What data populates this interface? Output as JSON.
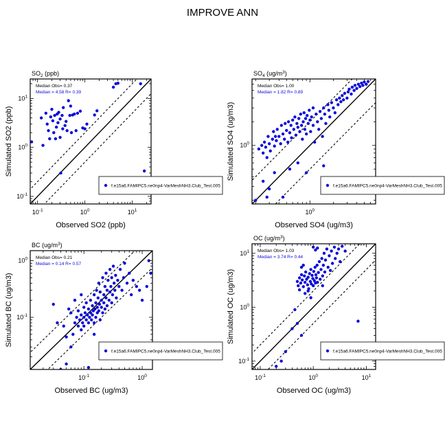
{
  "page_title": "IMPROVE ANN",
  "chart_data": [
    {
      "type": "scatter",
      "panel_label": "SO",
      "panel_label_sub": "2",
      "panel_label_unit": " (ppb)",
      "xlabel": "Observed SO2 (ppb)",
      "ylabel": "Simulated SO2 (ppb)",
      "xscale": "log",
      "yscale": "log",
      "xlim": [
        0.07,
        25
      ],
      "ylim": [
        0.07,
        25
      ],
      "xticks": [
        {
          "v": 0.1,
          "b": "10",
          "e": "-1"
        },
        {
          "v": 1,
          "b": "10",
          "e": "0"
        },
        {
          "v": 10,
          "b": "10",
          "e": "1"
        }
      ],
      "yticks": [
        {
          "v": 0.1,
          "b": "10",
          "e": "-1"
        },
        {
          "v": 1,
          "b": "10",
          "e": "0"
        },
        {
          "v": 10,
          "b": "10",
          "e": "1"
        }
      ],
      "median_obs": "Median Obs= 0.37",
      "median_sim": "Median = 4.58 R= 0.39",
      "legend": "f.e15a6.FAMIPC5.ne0np4-VarMeshNH3.Club_Test.005",
      "points": [
        [
          0.075,
          1.3
        ],
        [
          0.12,
          4.0
        ],
        [
          0.13,
          1.1
        ],
        [
          0.15,
          5.0
        ],
        [
          0.16,
          3.0
        ],
        [
          0.17,
          2.2
        ],
        [
          0.18,
          1.5
        ],
        [
          0.19,
          4.2
        ],
        [
          0.2,
          6.0
        ],
        [
          0.21,
          3.5
        ],
        [
          0.22,
          2.0
        ],
        [
          0.23,
          4.5
        ],
        [
          0.24,
          1.5
        ],
        [
          0.25,
          2.6
        ],
        [
          0.26,
          4.8
        ],
        [
          0.27,
          3.2
        ],
        [
          0.28,
          5.2
        ],
        [
          0.3,
          1.6
        ],
        [
          0.3,
          3.8
        ],
        [
          0.31,
          0.3
        ],
        [
          0.33,
          4.5
        ],
        [
          0.34,
          2.4
        ],
        [
          0.35,
          6.5
        ],
        [
          0.38,
          2.8
        ],
        [
          0.4,
          3.4
        ],
        [
          0.42,
          2.2
        ],
        [
          0.45,
          9.0
        ],
        [
          0.48,
          4.5
        ],
        [
          0.5,
          7.0
        ],
        [
          0.52,
          2.0
        ],
        [
          0.55,
          4.6
        ],
        [
          0.6,
          4.8
        ],
        [
          0.65,
          2.2
        ],
        [
          0.7,
          5.0
        ],
        [
          0.8,
          5.5
        ],
        [
          0.9,
          2.5
        ],
        [
          1.0,
          2.4
        ],
        [
          1.1,
          3.0
        ],
        [
          1.6,
          4.6
        ],
        [
          1.8,
          5.6
        ],
        [
          4.0,
          17.0
        ],
        [
          4.5,
          20.0
        ],
        [
          5.0,
          20.5
        ],
        [
          15.0,
          20.0
        ],
        [
          18.0,
          0.33
        ]
      ]
    },
    {
      "type": "scatter",
      "panel_label": "SO",
      "panel_label_sub": "4",
      "panel_label_unit": " (ug/m",
      "panel_label_sup": "3",
      "panel_label_end": ")",
      "xlabel": "Observed SO4 (ug/m3)",
      "ylabel": "Simulated SO4 (ug/m3)",
      "xscale": "log",
      "yscale": "log",
      "xlim": [
        0.18,
        7
      ],
      "ylim": [
        0.18,
        7
      ],
      "xticks": [
        {
          "v": 1,
          "b": "10",
          "e": "0"
        }
      ],
      "yticks": [
        {
          "v": 1,
          "b": "10",
          "e": "0"
        }
      ],
      "median_obs": "Median Obs= 1.00",
      "median_sim": "Median = 1.82 R= 0.89",
      "legend": "f.e15a6.FAMIPC5.ne0np4-VarMeshNH3.Club_Test.005",
      "points": [
        [
          0.22,
          0.9
        ],
        [
          0.24,
          1.0
        ],
        [
          0.25,
          0.8
        ],
        [
          0.26,
          1.1
        ],
        [
          0.27,
          0.95
        ],
        [
          0.28,
          0.7
        ],
        [
          0.29,
          1.3
        ],
        [
          0.3,
          1.05
        ],
        [
          0.31,
          0.85
        ],
        [
          0.33,
          1.2
        ],
        [
          0.34,
          1.5
        ],
        [
          0.35,
          0.98
        ],
        [
          0.36,
          1.3
        ],
        [
          0.37,
          1.15
        ],
        [
          0.38,
          1.6
        ],
        [
          0.4,
          1.3
        ],
        [
          0.42,
          1.05
        ],
        [
          0.43,
          1.8
        ],
        [
          0.45,
          1.4
        ],
        [
          0.47,
          1.2
        ],
        [
          0.48,
          1.9
        ],
        [
          0.5,
          1.55
        ],
        [
          0.52,
          1.1
        ],
        [
          0.53,
          2.0
        ],
        [
          0.55,
          1.45
        ],
        [
          0.57,
          1.8
        ],
        [
          0.58,
          1.25
        ],
        [
          0.6,
          2.1
        ],
        [
          0.62,
          1.6
        ],
        [
          0.64,
          2.3
        ],
        [
          0.66,
          1.35
        ],
        [
          0.68,
          1.9
        ],
        [
          0.7,
          1.7
        ],
        [
          0.72,
          2.2
        ],
        [
          0.74,
          1.5
        ],
        [
          0.76,
          2.5
        ],
        [
          0.78,
          1.8
        ],
        [
          0.8,
          1.2
        ],
        [
          0.82,
          2.0
        ],
        [
          0.84,
          2.6
        ],
        [
          0.86,
          1.6
        ],
        [
          0.88,
          2.2
        ],
        [
          0.9,
          1.4
        ],
        [
          0.92,
          2.4
        ],
        [
          0.95,
          1.9
        ],
        [
          0.98,
          2.8
        ],
        [
          1.0,
          2.1
        ],
        [
          1.02,
          1.5
        ],
        [
          1.05,
          2.3
        ],
        [
          1.1,
          1.8
        ],
        [
          1.1,
          3.0
        ],
        [
          1.15,
          1.1
        ],
        [
          1.2,
          2.5
        ],
        [
          1.25,
          2.0
        ],
        [
          1.3,
          1.6
        ],
        [
          1.35,
          2.7
        ],
        [
          1.4,
          2.2
        ],
        [
          1.45,
          1.3
        ],
        [
          1.5,
          3.0
        ],
        [
          1.55,
          2.5
        ],
        [
          1.6,
          1.9
        ],
        [
          1.7,
          3.3
        ],
        [
          1.75,
          2.8
        ],
        [
          1.8,
          2.3
        ],
        [
          1.9,
          3.5
        ],
        [
          2.0,
          3.0
        ],
        [
          2.1,
          2.6
        ],
        [
          2.2,
          3.8
        ],
        [
          2.3,
          3.3
        ],
        [
          2.4,
          4.0
        ],
        [
          2.5,
          3.6
        ],
        [
          2.6,
          4.3
        ],
        [
          2.7,
          3.8
        ],
        [
          2.8,
          4.6
        ],
        [
          3.0,
          4.0
        ],
        [
          3.1,
          4.8
        ],
        [
          3.2,
          5.2
        ],
        [
          3.4,
          4.5
        ],
        [
          3.5,
          5.5
        ],
        [
          3.7,
          5.0
        ],
        [
          3.8,
          5.8
        ],
        [
          4.0,
          5.3
        ],
        [
          4.2,
          6.0
        ],
        [
          4.4,
          5.6
        ],
        [
          4.6,
          6.2
        ],
        [
          4.8,
          5.8
        ],
        [
          5.0,
          6.4
        ],
        [
          5.3,
          6.0
        ],
        [
          5.6,
          6.5
        ],
        [
          0.35,
          0.45
        ],
        [
          0.45,
          0.22
        ],
        [
          0.55,
          0.5
        ],
        [
          0.7,
          0.6
        ],
        [
          0.9,
          0.45
        ],
        [
          1.5,
          0.55
        ],
        [
          0.25,
          0.35
        ],
        [
          0.28,
          0.22
        ],
        [
          0.3,
          0.28
        ],
        [
          0.2,
          0.2
        ]
      ]
    },
    {
      "type": "scatter",
      "panel_label": "BC",
      "panel_label_unit": " (ug/m",
      "panel_label_sup": "3",
      "panel_label_end": ")",
      "xlabel": "Observed BC (ug/m3)",
      "ylabel": "Simulated BC (ug/m3)",
      "xscale": "log",
      "yscale": "log",
      "xlim": [
        0.012,
        1.5
      ],
      "ylim": [
        0.012,
        1.5
      ],
      "xticks": [
        {
          "v": 0.1,
          "b": "10",
          "e": "-1"
        },
        {
          "v": 1,
          "b": "10",
          "e": "0"
        }
      ],
      "yticks": [
        {
          "v": 0.1,
          "b": "10",
          "e": "-1"
        },
        {
          "v": 1,
          "b": "10",
          "e": "0"
        }
      ],
      "median_obs": "Median Obs= 0.21",
      "median_sim": "Median = 0.14 R= 0.57",
      "legend": "f.e15a6.FAMIPC5.ne0np4-VarMeshNH3.Club_Test.005",
      "points": [
        [
          0.03,
          0.17
        ],
        [
          0.035,
          0.08
        ],
        [
          0.04,
          0.012
        ],
        [
          0.045,
          0.07
        ],
        [
          0.05,
          0.015
        ],
        [
          0.055,
          0.14
        ],
        [
          0.06,
          0.12
        ],
        [
          0.065,
          0.05
        ],
        [
          0.07,
          0.08
        ],
        [
          0.075,
          0.1
        ],
        [
          0.08,
          0.07
        ],
        [
          0.08,
          0.13
        ],
        [
          0.085,
          0.09
        ],
        [
          0.09,
          0.06
        ],
        [
          0.09,
          0.11
        ],
        [
          0.095,
          0.08
        ],
        [
          0.1,
          0.1
        ],
        [
          0.1,
          0.15
        ],
        [
          0.1,
          0.07
        ],
        [
          0.105,
          0.12
        ],
        [
          0.11,
          0.09
        ],
        [
          0.11,
          0.18
        ],
        [
          0.115,
          0.11
        ],
        [
          0.12,
          0.08
        ],
        [
          0.12,
          0.14
        ],
        [
          0.125,
          0.1
        ],
        [
          0.13,
          0.2
        ],
        [
          0.13,
          0.12
        ],
        [
          0.135,
          0.09
        ],
        [
          0.14,
          0.16
        ],
        [
          0.14,
          0.11
        ],
        [
          0.145,
          0.13
        ],
        [
          0.15,
          0.25
        ],
        [
          0.15,
          0.08
        ],
        [
          0.155,
          0.14
        ],
        [
          0.16,
          0.18
        ],
        [
          0.16,
          0.1
        ],
        [
          0.165,
          0.3
        ],
        [
          0.17,
          0.15
        ],
        [
          0.17,
          0.12
        ],
        [
          0.175,
          0.22
        ],
        [
          0.18,
          0.4
        ],
        [
          0.18,
          0.13
        ],
        [
          0.185,
          0.17
        ],
        [
          0.19,
          0.28
        ],
        [
          0.19,
          0.09
        ],
        [
          0.2,
          0.2
        ],
        [
          0.2,
          0.15
        ],
        [
          0.21,
          0.5
        ],
        [
          0.21,
          0.12
        ],
        [
          0.22,
          0.25
        ],
        [
          0.22,
          0.18
        ],
        [
          0.23,
          0.35
        ],
        [
          0.23,
          0.14
        ],
        [
          0.24,
          0.6
        ],
        [
          0.24,
          0.22
        ],
        [
          0.25,
          0.3
        ],
        [
          0.25,
          0.16
        ],
        [
          0.26,
          0.45
        ],
        [
          0.27,
          0.2
        ],
        [
          0.28,
          0.7
        ],
        [
          0.28,
          0.28
        ],
        [
          0.29,
          0.35
        ],
        [
          0.3,
          0.5
        ],
        [
          0.3,
          0.18
        ],
        [
          0.31,
          0.25
        ],
        [
          0.32,
          0.8
        ],
        [
          0.33,
          0.4
        ],
        [
          0.34,
          0.3
        ],
        [
          0.35,
          0.55
        ],
        [
          0.36,
          0.22
        ],
        [
          0.38,
          0.45
        ],
        [
          0.4,
          0.35
        ],
        [
          0.42,
          0.7
        ],
        [
          0.45,
          0.3
        ],
        [
          0.48,
          0.5
        ],
        [
          0.5,
          0.9
        ],
        [
          0.55,
          0.4
        ],
        [
          0.6,
          0.6
        ],
        [
          0.65,
          0.25
        ],
        [
          0.7,
          0.45
        ],
        [
          0.8,
          0.35
        ],
        [
          0.9,
          0.3
        ],
        [
          1.0,
          0.2
        ],
        [
          1.2,
          0.35
        ],
        [
          1.3,
          1.0
        ],
        [
          1.4,
          0.6
        ],
        [
          0.05,
          0.045
        ],
        [
          0.06,
          0.03
        ],
        [
          0.12,
          0.013
        ],
        [
          0.07,
          0.2
        ],
        [
          0.15,
          0.05
        ],
        [
          0.09,
          0.25
        ]
      ]
    },
    {
      "type": "scatter",
      "panel_label": "OC",
      "panel_label_unit": " (ug/m",
      "panel_label_sup": "3",
      "panel_label_end": ")",
      "xlabel": "Observed OC (ug/m3)",
      "ylabel": "Simulated OC (ug/m3)",
      "xscale": "log",
      "yscale": "log",
      "xlim": [
        0.07,
        15
      ],
      "ylim": [
        0.07,
        15
      ],
      "xticks": [
        {
          "v": 0.1,
          "b": "10",
          "e": "-1"
        },
        {
          "v": 1,
          "b": "10",
          "e": "0"
        },
        {
          "v": 10,
          "b": "10",
          "e": "1"
        }
      ],
      "yticks": [
        {
          "v": 0.1,
          "b": "10",
          "e": "-1"
        },
        {
          "v": 1,
          "b": "10",
          "e": "0"
        },
        {
          "v": 10,
          "b": "10",
          "e": "1"
        }
      ],
      "median_obs": "Median Obs= 1.03",
      "median_sim": "Median = 3.74 R= 0.44",
      "legend": "f.e15a6.FAMIPC5.ne0np4-VarMeshNH3.Club_Test.005",
      "points": [
        [
          0.5,
          3.0
        ],
        [
          0.52,
          2.5
        ],
        [
          0.55,
          3.5
        ],
        [
          0.58,
          2.8
        ],
        [
          0.6,
          4.0
        ],
        [
          0.62,
          3.2
        ],
        [
          0.65,
          2.4
        ],
        [
          0.68,
          3.8
        ],
        [
          0.7,
          2.9
        ],
        [
          0.72,
          4.5
        ],
        [
          0.75,
          3.3
        ],
        [
          0.78,
          2.6
        ],
        [
          0.8,
          3.6
        ],
        [
          0.82,
          2.2
        ],
        [
          0.85,
          4.2
        ],
        [
          0.88,
          3.0
        ],
        [
          0.9,
          5.0
        ],
        [
          0.92,
          2.7
        ],
        [
          0.95,
          3.9
        ],
        [
          0.98,
          3.4
        ],
        [
          1.0,
          2.5
        ],
        [
          1.02,
          4.6
        ],
        [
          1.05,
          3.1
        ],
        [
          1.08,
          5.5
        ],
        [
          1.1,
          2.8
        ],
        [
          1.12,
          4.0
        ],
        [
          1.15,
          3.5
        ],
        [
          1.18,
          6.0
        ],
        [
          1.2,
          2.9
        ],
        [
          1.25,
          4.4
        ],
        [
          1.3,
          7.0
        ],
        [
          1.35,
          3.3
        ],
        [
          1.4,
          5.0
        ],
        [
          1.45,
          8.0
        ],
        [
          1.5,
          3.8
        ],
        [
          1.55,
          6.0
        ],
        [
          1.6,
          10.0
        ],
        [
          1.65,
          4.5
        ],
        [
          1.7,
          7.5
        ],
        [
          1.8,
          12.0
        ],
        [
          1.9,
          5.5
        ],
        [
          2.0,
          9.0
        ],
        [
          2.1,
          4.8
        ],
        [
          2.2,
          11.0
        ],
        [
          2.3,
          6.5
        ],
        [
          2.5,
          13.0
        ],
        [
          2.6,
          8.0
        ],
        [
          2.8,
          10.0
        ],
        [
          3.0,
          12.0
        ],
        [
          3.2,
          7.0
        ],
        [
          3.5,
          13.5
        ],
        [
          4.0,
          11.0
        ],
        [
          1.0,
          13.0
        ],
        [
          1.1,
          11.5
        ],
        [
          1.2,
          12.5
        ],
        [
          0.8,
          2.0
        ],
        [
          0.7,
          1.8
        ],
        [
          0.6,
          5.5
        ],
        [
          0.55,
          2.1
        ],
        [
          0.65,
          6.0
        ],
        [
          0.4,
          0.4
        ],
        [
          0.5,
          0.5
        ],
        [
          0.6,
          0.3
        ],
        [
          0.3,
          0.15
        ],
        [
          0.45,
          0.9
        ],
        [
          0.2,
          0.08
        ],
        [
          0.25,
          0.1
        ],
        [
          0.9,
          1.5
        ],
        [
          1.5,
          2.5
        ],
        [
          7.0,
          0.55
        ]
      ]
    }
  ]
}
